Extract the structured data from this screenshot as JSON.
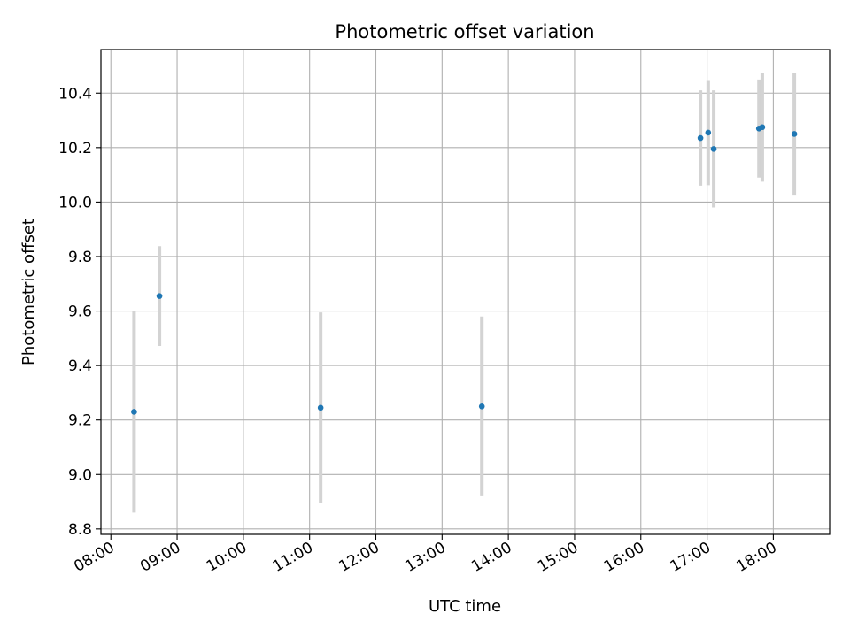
{
  "chart_data": {
    "type": "scatter",
    "title": "Photometric offset variation",
    "xlabel": "UTC time",
    "ylabel": "Photometric offset",
    "x_ticks": [
      "08:00",
      "09:00",
      "10:00",
      "11:00",
      "12:00",
      "13:00",
      "14:00",
      "15:00",
      "16:00",
      "17:00",
      "18:00"
    ],
    "y_ticks": [
      "8.8",
      "9.0",
      "9.2",
      "9.4",
      "9.6",
      "9.8",
      "10.0",
      "10.2",
      "10.4"
    ],
    "xlim": [
      "07:51",
      "18:51"
    ],
    "ylim": [
      8.78,
      10.56
    ],
    "grid": true,
    "errorbar_color": "#d3d3d3",
    "point_color": "#1f77b4",
    "points": [
      {
        "time": "08:21",
        "y": 9.23,
        "yerr": 0.37
      },
      {
        "time": "08:44",
        "y": 9.655,
        "yerr": 0.183
      },
      {
        "time": "11:10",
        "y": 9.245,
        "yerr": 0.35
      },
      {
        "time": "13:36",
        "y": 9.25,
        "yerr": 0.33
      },
      {
        "time": "16:54",
        "y": 10.235,
        "yerr": 0.175
      },
      {
        "time": "17:01",
        "y": 10.255,
        "yerr": 0.193
      },
      {
        "time": "17:06",
        "y": 10.195,
        "yerr": 0.215
      },
      {
        "time": "17:47",
        "y": 10.27,
        "yerr": 0.18
      },
      {
        "time": "17:50",
        "y": 10.275,
        "yerr": 0.2
      },
      {
        "time": "18:19",
        "y": 10.25,
        "yerr": 0.223
      }
    ]
  }
}
